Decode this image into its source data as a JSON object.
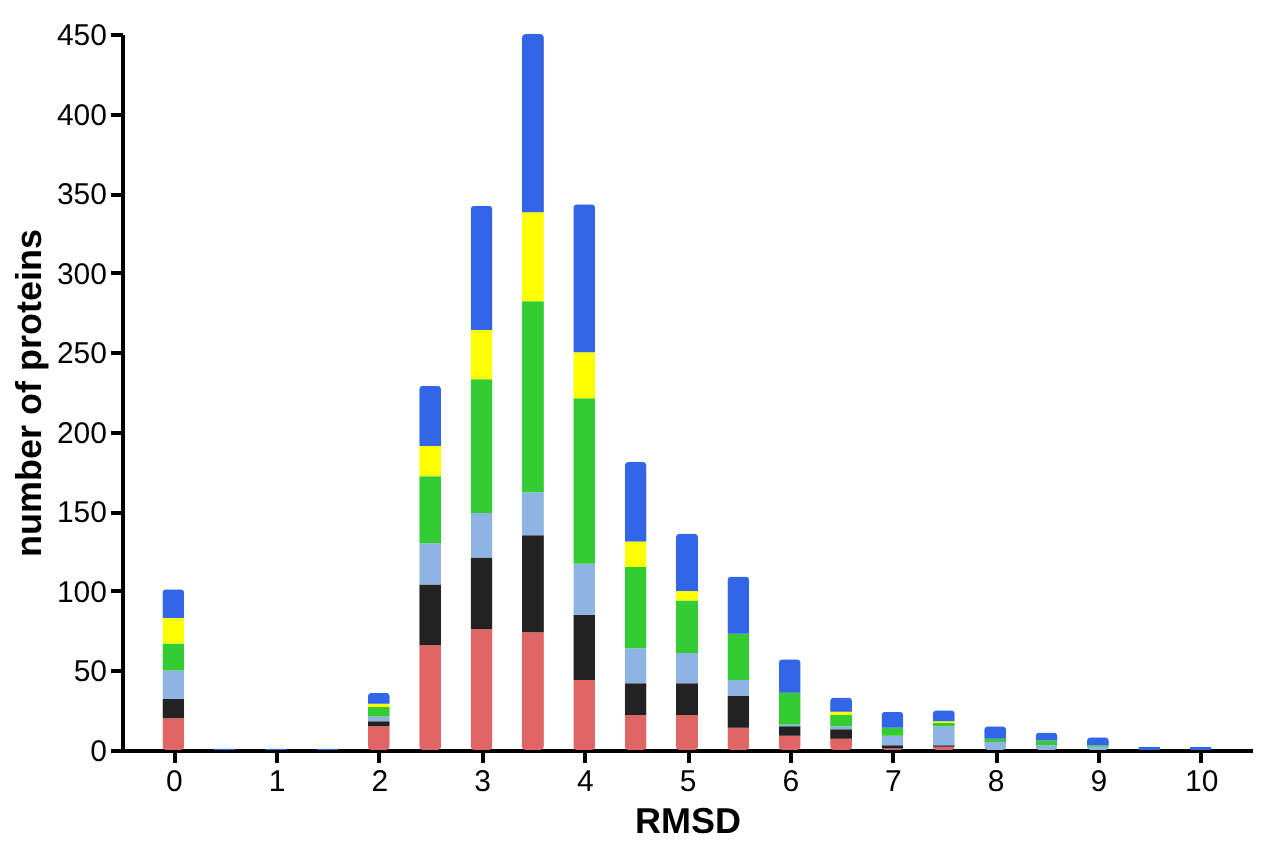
{
  "chart_data": {
    "type": "bar",
    "stacked": true,
    "xlabel": "RMSD",
    "ylabel": "number of proteins",
    "x": [
      0,
      0.5,
      1,
      1.5,
      2,
      2.5,
      3,
      3.5,
      4,
      4.5,
      5,
      5.5,
      6,
      6.5,
      7,
      7.5,
      8,
      8.5,
      9,
      9.5,
      10
    ],
    "xlim": [
      -0.5,
      10.5
    ],
    "xticks": [
      0,
      1,
      2,
      3,
      4,
      5,
      6,
      7,
      8,
      9,
      10
    ],
    "ylim": [
      0,
      450
    ],
    "yticks": [
      0,
      50,
      100,
      150,
      200,
      250,
      300,
      350,
      400,
      450
    ],
    "grid": false,
    "legend": false,
    "series": [
      {
        "color": "#e06666",
        "values": [
          20,
          0,
          0,
          0,
          15,
          66,
          76,
          74,
          44,
          22,
          22,
          14,
          9,
          7,
          1,
          2,
          0,
          0,
          0,
          0,
          0
        ]
      },
      {
        "color": "#222222",
        "values": [
          12,
          0,
          0,
          0,
          3,
          38,
          45,
          61,
          41,
          20,
          20,
          20,
          6,
          6,
          2,
          1,
          0,
          0,
          0,
          0,
          0
        ]
      },
      {
        "color": "#8db4e2",
        "values": [
          18,
          0,
          0,
          0,
          3,
          26,
          28,
          27,
          32,
          22,
          19,
          10,
          1,
          2,
          6,
          12,
          5,
          3,
          2,
          0,
          0
        ]
      },
      {
        "color": "#33cc33",
        "values": [
          17,
          0,
          0,
          0,
          6,
          42,
          84,
          120,
          104,
          51,
          33,
          29,
          20,
          7,
          5,
          2,
          2,
          3,
          1,
          0,
          0
        ]
      },
      {
        "color": "#ffff00",
        "values": [
          16,
          0,
          0,
          0,
          2,
          19,
          31,
          56,
          29,
          16,
          6,
          0,
          0,
          2,
          0,
          1,
          0,
          0,
          0,
          0,
          0
        ]
      },
      {
        "color": "#3366e6",
        "values": [
          18,
          1,
          1,
          1,
          7,
          38,
          78,
          112,
          93,
          50,
          36,
          36,
          21,
          9,
          10,
          7,
          8,
          5,
          5,
          2,
          2
        ]
      }
    ]
  }
}
